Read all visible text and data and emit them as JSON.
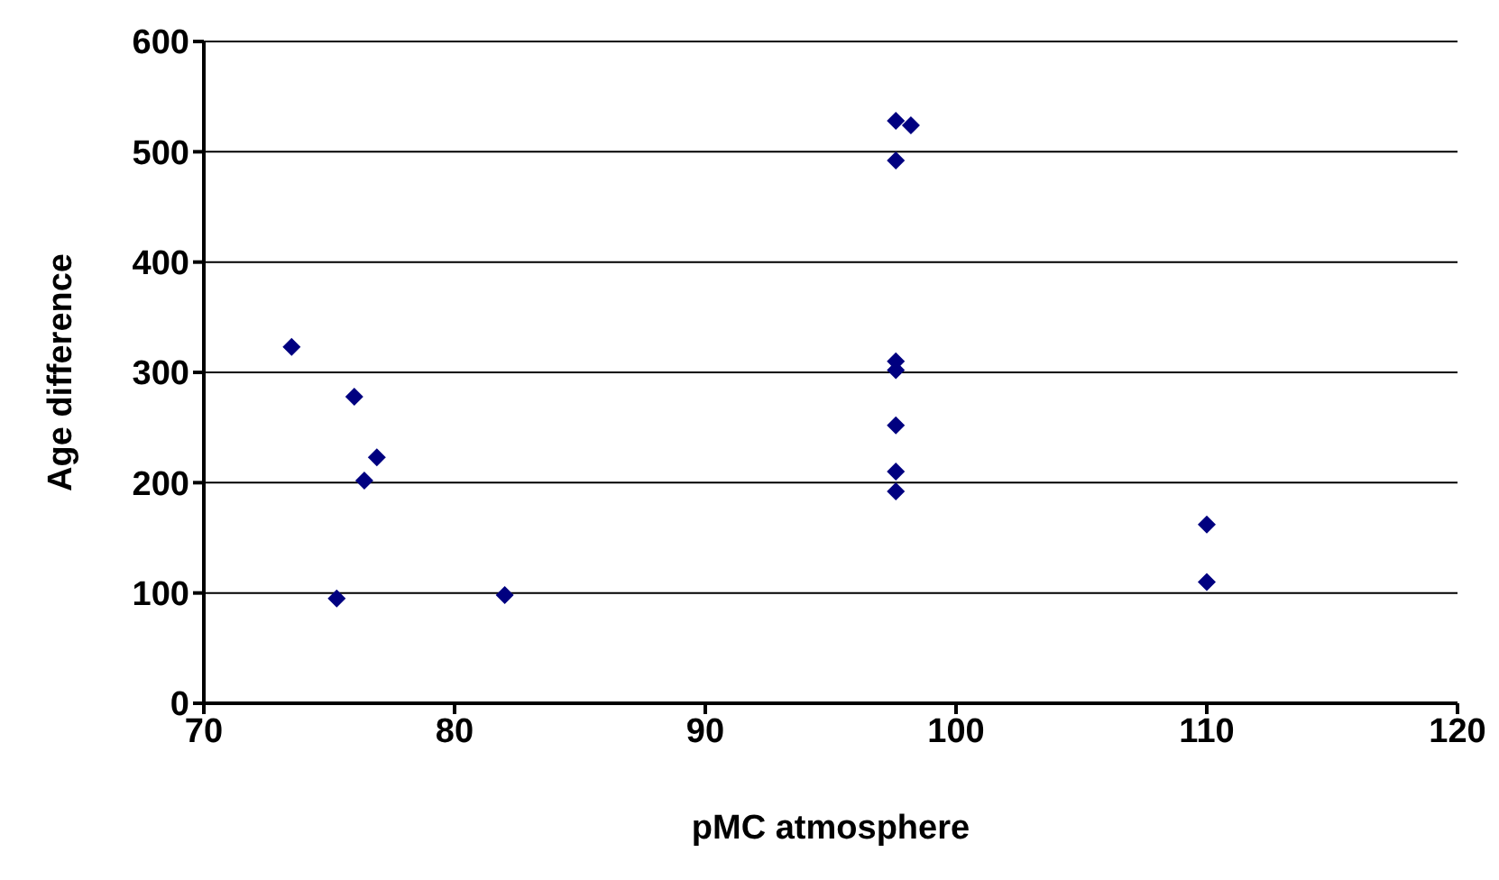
{
  "chart_data": {
    "type": "scatter",
    "xlabel": "pMC atmosphere",
    "ylabel": "Age difference",
    "x": [
      73.5,
      76.0,
      76.9,
      76.4,
      75.3,
      82.0,
      97.6,
      98.2,
      97.6,
      97.6,
      97.6,
      97.6,
      97.6,
      97.6,
      110.0,
      110.0
    ],
    "series": [
      {
        "color": "#000080",
        "values": [
          323,
          278,
          223,
          202,
          95,
          98,
          528,
          524,
          492,
          310,
          302,
          252,
          210,
          192,
          162,
          110
        ]
      }
    ],
    "xlim": [
      70,
      120
    ],
    "xticks": [
      70,
      80,
      90,
      100,
      110,
      120
    ],
    "ylim": [
      0,
      600
    ],
    "yticks": [
      0,
      100,
      200,
      300,
      400,
      500,
      600
    ],
    "grid": "y",
    "marker": "diamond"
  }
}
